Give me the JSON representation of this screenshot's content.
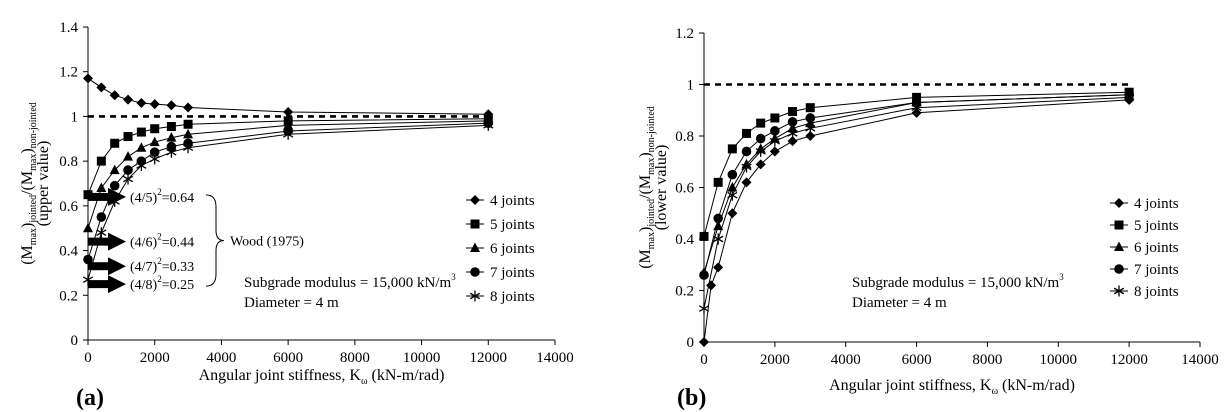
{
  "figure": {
    "panels": [
      {
        "label": "(a)",
        "legend": [
          "4 joints",
          "5 joints",
          "6 joints",
          "7 joints",
          "8 joints"
        ],
        "note_line1": "Subgrade modulus = 15,000 kN/m",
        "note_line1_sup": "3",
        "note_line2": "Diameter = 4 m",
        "ylabel_parts": [
          "(M",
          "max",
          ")",
          "jointed",
          "/(M",
          "max",
          ")",
          "non-jointed"
        ],
        "ylabel_line2": "(upper value)",
        "xlabel": "Angular joint stiffness,  K",
        "xlabel_sub": "ω",
        "xlabel_tail": " (kN-m/rad)",
        "brace_label": "Wood (1975)",
        "arrows": [
          {
            "base": "(4/5)",
            "exp": "2",
            "tail": "=0.64",
            "value": 0.64
          },
          {
            "base": "(4/6)",
            "exp": "2",
            "tail": "=0.44",
            "value": 0.44
          },
          {
            "base": "(4/7)",
            "exp": "2",
            "tail": "=0.33",
            "value": 0.33
          },
          {
            "base": "(4/8)",
            "exp": "2",
            "tail": "=0.25",
            "value": 0.25
          }
        ]
      },
      {
        "label": "(b)",
        "legend": [
          "4 joints",
          "5 joints",
          "6 joints",
          "7 joints",
          "8 joints"
        ],
        "note_line1": "Subgrade modulus = 15,000 kN/m",
        "note_line1_sup": "3",
        "note_line2": "Diameter = 4 m",
        "ylabel_parts": [
          "(M",
          "max",
          ")",
          "jointed",
          "/(M",
          "max",
          ")",
          "non-jointed"
        ],
        "ylabel_line2": "(lower value)",
        "xlabel": "Angular joint stiffness,  K",
        "xlabel_sub": "ω",
        "xlabel_tail": " (kN-m/rad)"
      }
    ]
  },
  "chart_data": [
    {
      "type": "line",
      "panel": "(a)",
      "xlabel": "Angular joint stiffness, Kω (kN-m/rad)",
      "ylabel": "(Mmax)jointed/(Mmax)non-jointed (upper value)",
      "xlim": [
        0,
        14000
      ],
      "ylim": [
        0,
        1.4
      ],
      "x_ticks": [
        0,
        2000,
        4000,
        6000,
        8000,
        10000,
        12000,
        14000
      ],
      "y_ticks": [
        0,
        0.2,
        0.4,
        0.6,
        0.8,
        1,
        1.2,
        1.4
      ],
      "y_tick_labels": [
        "0",
        "0.2",
        "0.4",
        "0.6",
        "0.8",
        "1",
        "1.2",
        "1.4"
      ],
      "reference_line": 1.0,
      "series": [
        {
          "name": "4 joints",
          "marker": "diamond",
          "x": [
            0,
            400,
            800,
            1200,
            1600,
            2000,
            2500,
            3000,
            6000,
            12000
          ],
          "y": [
            1.17,
            1.13,
            1.095,
            1.075,
            1.06,
            1.055,
            1.05,
            1.04,
            1.02,
            1.01
          ]
        },
        {
          "name": "5 joints",
          "marker": "square",
          "x": [
            0,
            400,
            800,
            1200,
            1600,
            2000,
            2500,
            3000,
            6000,
            12000
          ],
          "y": [
            0.65,
            0.8,
            0.88,
            0.91,
            0.93,
            0.945,
            0.955,
            0.965,
            0.98,
            0.99
          ]
        },
        {
          "name": "6 joints",
          "marker": "triangle",
          "x": [
            0,
            400,
            800,
            1200,
            1600,
            2000,
            2500,
            3000,
            6000,
            12000
          ],
          "y": [
            0.5,
            0.68,
            0.76,
            0.82,
            0.86,
            0.885,
            0.905,
            0.92,
            0.96,
            0.98
          ]
        },
        {
          "name": "7 joints",
          "marker": "circle",
          "x": [
            0,
            400,
            800,
            1200,
            1600,
            2000,
            2500,
            3000,
            6000,
            12000
          ],
          "y": [
            0.36,
            0.55,
            0.69,
            0.76,
            0.8,
            0.84,
            0.865,
            0.88,
            0.935,
            0.97
          ]
        },
        {
          "name": "8 joints",
          "marker": "star",
          "x": [
            0,
            400,
            800,
            1200,
            1600,
            2000,
            2500,
            3000,
            6000,
            12000
          ],
          "y": [
            0.27,
            0.48,
            0.62,
            0.72,
            0.78,
            0.81,
            0.84,
            0.86,
            0.92,
            0.96
          ]
        }
      ]
    },
    {
      "type": "line",
      "panel": "(b)",
      "xlabel": "Angular joint stiffness, Kω (kN-m/rad)",
      "ylabel": "(Mmax)jointed/(Mmax)non-jointed (lower value)",
      "xlim": [
        0,
        14000
      ],
      "ylim": [
        0,
        1.2
      ],
      "x_ticks": [
        0,
        2000,
        4000,
        6000,
        8000,
        10000,
        12000,
        14000
      ],
      "y_ticks": [
        0,
        0.2,
        0.4,
        0.6,
        0.8,
        1,
        1.2
      ],
      "y_tick_labels": [
        "0",
        "0.2",
        "0.4",
        "0.6",
        "0.8",
        "1",
        "1.2"
      ],
      "reference_line": 1.0,
      "series": [
        {
          "name": "4 joints",
          "marker": "diamond",
          "x": [
            0,
            200,
            400,
            800,
            1200,
            1600,
            2000,
            2500,
            3000,
            6000,
            12000
          ],
          "y": [
            0.0,
            0.22,
            0.29,
            0.5,
            0.62,
            0.69,
            0.74,
            0.78,
            0.8,
            0.89,
            0.94
          ]
        },
        {
          "name": "5 joints",
          "marker": "square",
          "x": [
            0,
            400,
            800,
            1200,
            1600,
            2000,
            2500,
            3000,
            6000,
            12000
          ],
          "y": [
            0.41,
            0.62,
            0.75,
            0.81,
            0.85,
            0.87,
            0.895,
            0.91,
            0.95,
            0.97
          ]
        },
        {
          "name": "6 joints",
          "marker": "triangle",
          "x": [
            0,
            400,
            800,
            1200,
            1600,
            2000,
            2500,
            3000,
            6000,
            12000
          ],
          "y": [
            0.27,
            0.45,
            0.6,
            0.69,
            0.75,
            0.79,
            0.83,
            0.85,
            0.93,
            0.96
          ]
        },
        {
          "name": "7 joints",
          "marker": "circle",
          "x": [
            0,
            400,
            800,
            1200,
            1600,
            2000,
            2500,
            3000,
            6000,
            12000
          ],
          "y": [
            0.26,
            0.48,
            0.65,
            0.74,
            0.79,
            0.82,
            0.855,
            0.87,
            0.93,
            0.96
          ]
        },
        {
          "name": "8 joints",
          "marker": "star",
          "x": [
            0,
            400,
            800,
            1200,
            1600,
            2000,
            2500,
            3000,
            6000,
            12000
          ],
          "y": [
            0.13,
            0.4,
            0.57,
            0.68,
            0.74,
            0.78,
            0.81,
            0.83,
            0.91,
            0.95
          ]
        }
      ]
    }
  ]
}
